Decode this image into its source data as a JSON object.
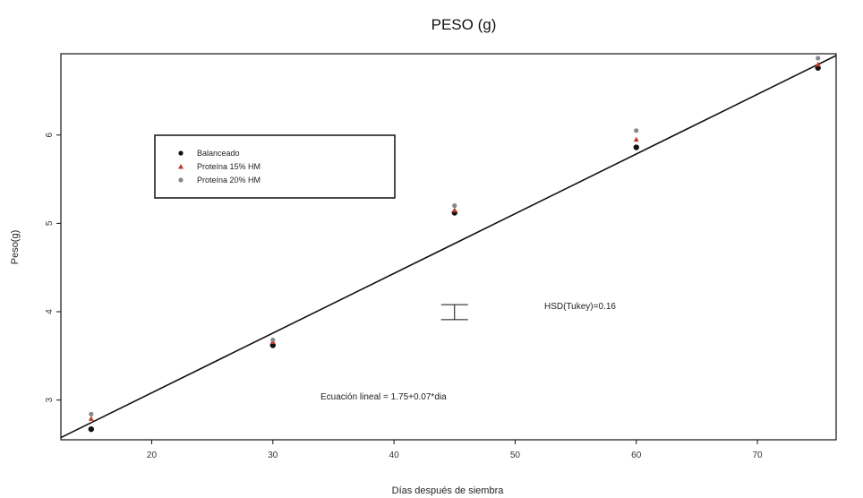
{
  "chart_data": {
    "type": "scatter",
    "title": "PESO (g)",
    "xlabel": "Días después de siembra",
    "ylabel": "Peso(g)",
    "xlim": [
      12.5,
      76.5
    ],
    "ylim": [
      2.55,
      6.92
    ],
    "x_ticks": [
      20,
      30,
      40,
      50,
      60,
      70
    ],
    "y_ticks": [
      3,
      4,
      5,
      6
    ],
    "legend": {
      "position": "upper-left",
      "entries": [
        "Balanceado",
        "Proteína 15% HM",
        "Proteína 20% HM"
      ]
    },
    "series": [
      {
        "name": "Balanceado",
        "marker": "circle",
        "color": "#111111",
        "x": [
          15,
          30,
          45,
          60,
          75
        ],
        "y": [
          2.67,
          3.62,
          5.12,
          5.86,
          6.76
        ]
      },
      {
        "name": "Proteína 15% HM",
        "marker": "triangle",
        "color": "#c0392b",
        "x": [
          15,
          30,
          45,
          60,
          75
        ],
        "y": [
          2.79,
          3.66,
          5.15,
          5.95,
          6.8
        ]
      },
      {
        "name": "Proteína 20% HM",
        "marker": "circle",
        "color": "#888888",
        "x": [
          15,
          30,
          45,
          60,
          75
        ],
        "y": [
          2.84,
          3.68,
          5.2,
          6.05,
          6.87
        ]
      }
    ],
    "regression_line": {
      "x": [
        12.5,
        76.5
      ],
      "y": [
        2.575,
        6.9
      ]
    },
    "annotations": {
      "equation": "Ecuación lineal = 1.75+0.07*dia",
      "hsd_label": "HSD(Tukey)=0.16",
      "hsd_bar": {
        "x": 45,
        "y_low": 3.91,
        "y_high": 4.08
      }
    }
  }
}
